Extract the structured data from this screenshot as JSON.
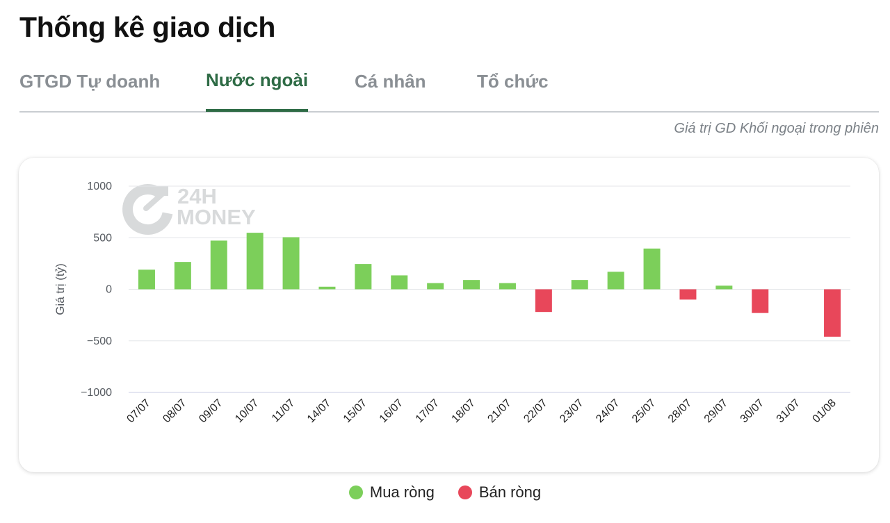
{
  "page": {
    "title": "Thống kê giao dịch",
    "subtitle": "Giá trị GD Khối ngoại trong phiên"
  },
  "tabs": [
    {
      "label": "GTGD Tự doanh",
      "active": false
    },
    {
      "label": "Nước ngoài",
      "active": true
    },
    {
      "label": "Cá nhân",
      "active": false
    },
    {
      "label": "Tổ chức",
      "active": false
    }
  ],
  "watermark": {
    "line1": "24H",
    "line2": "MONEY"
  },
  "colors": {
    "buy": "#7ccf5a",
    "sell": "#e8475a",
    "accent": "#2e6b45"
  },
  "legend": [
    {
      "label": "Mua ròng",
      "color": "#7ccf5a"
    },
    {
      "label": "Bán ròng",
      "color": "#e8475a"
    }
  ],
  "chart_data": {
    "type": "bar",
    "ylabel": "Giá trị (tỷ)",
    "ylim": [
      -1000,
      1000
    ],
    "yticks": [
      1000,
      500,
      0,
      -500,
      -1000
    ],
    "ytick_labels": [
      "1000",
      "500",
      "0",
      "−500",
      "−1000"
    ],
    "grid": true,
    "legend_position": "bottom",
    "categories": [
      "07/07",
      "08/07",
      "09/07",
      "10/07",
      "11/07",
      "14/07",
      "15/07",
      "16/07",
      "17/07",
      "18/07",
      "21/07",
      "22/07",
      "23/07",
      "24/07",
      "25/07",
      "28/07",
      "29/07",
      "30/07",
      "31/07",
      "01/08"
    ],
    "series": [
      {
        "name": "Mua ròng",
        "values": [
          190,
          265,
          472,
          548,
          505,
          25,
          245,
          135,
          60,
          90,
          60,
          null,
          90,
          170,
          395,
          null,
          35,
          null,
          null,
          null
        ]
      },
      {
        "name": "Bán ròng",
        "values": [
          null,
          null,
          null,
          null,
          null,
          null,
          null,
          null,
          null,
          null,
          null,
          -220,
          null,
          null,
          null,
          -100,
          null,
          -230,
          null,
          -460
        ]
      }
    ]
  }
}
